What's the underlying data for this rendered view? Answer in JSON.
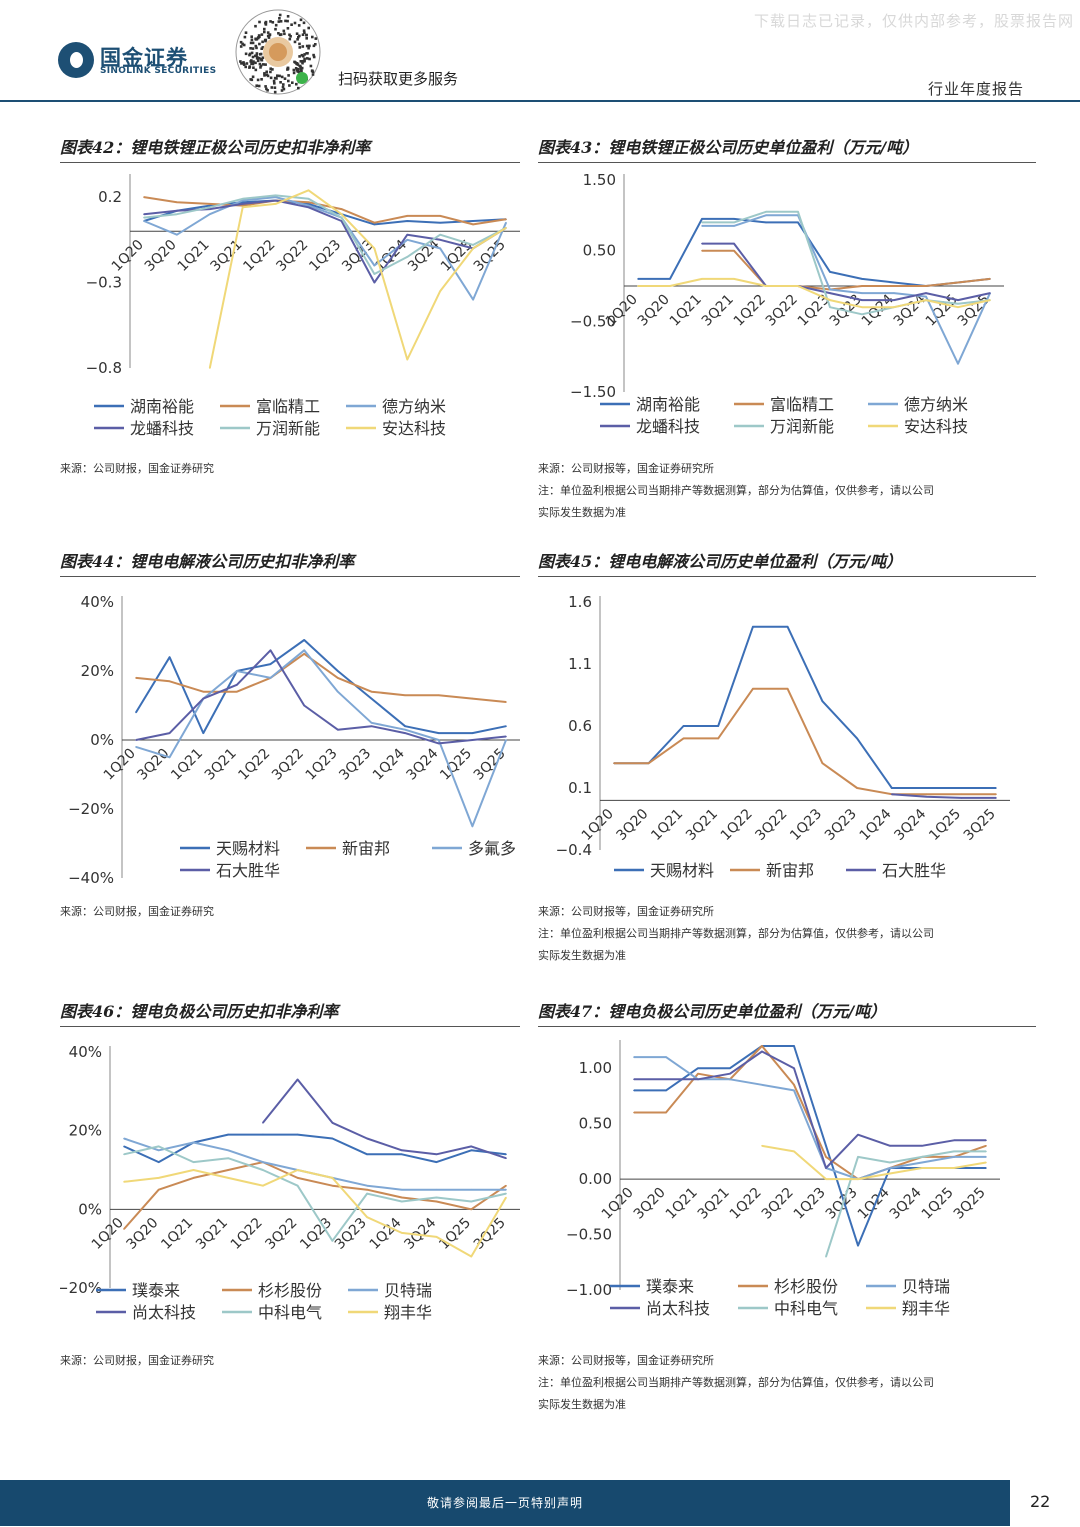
{
  "header": {
    "logo_cn": "国金证券",
    "logo_en": "SINOLINK SECURITIES",
    "scan_text": "扫码获取更多服务",
    "watermark": "下载日志已记录，仅供内部参考，股票报告网",
    "report_type": "行业年度报告"
  },
  "figures": [
    {
      "title": "图表42：锂电铁锂正极公司历史扣非净利率",
      "source": [
        "来源：公司财报，国金证券研究"
      ],
      "chart_data": {
        "type": "line",
        "categories": [
          "1Q20",
          "3Q20",
          "1Q21",
          "3Q21",
          "1Q22",
          "3Q22",
          "1Q23",
          "3Q23",
          "1Q24",
          "3Q24",
          "1Q25",
          "3Q25"
        ],
        "y_ticks": [
          "0.2",
          "−0.3",
          "−0.8"
        ],
        "ylim": [
          -0.8,
          0.3
        ],
        "series": [
          {
            "name": "湖南裕能",
            "color": "#3c6fb6",
            "values": [
              0.06,
              0.12,
              0.15,
              0.17,
              0.18,
              0.16,
              0.1,
              0.04,
              0.06,
              0.05,
              0.06,
              0.07
            ]
          },
          {
            "name": "富临精工",
            "color": "#c98a55",
            "values": [
              0.2,
              0.17,
              0.16,
              0.15,
              0.18,
              0.17,
              0.13,
              0.05,
              0.09,
              0.09,
              0.04,
              0.07
            ]
          },
          {
            "name": "德方纳米",
            "color": "#7fa7d4",
            "values": [
              0.06,
              -0.02,
              0.1,
              0.18,
              0.2,
              0.15,
              0.08,
              -0.2,
              -0.05,
              -0.1,
              -0.4,
              0.05
            ]
          },
          {
            "name": "龙蟠科技",
            "color": "#5b5ea6",
            "values": [
              0.1,
              0.12,
              0.13,
              0.16,
              0.18,
              0.14,
              0.06,
              -0.3,
              -0.02,
              -0.05,
              -0.1,
              0.02
            ]
          },
          {
            "name": "万润新能",
            "color": "#9dc8c8",
            "values": [
              0.08,
              0.1,
              0.14,
              0.19,
              0.21,
              0.19,
              0.08,
              -0.25,
              -0.15,
              -0.02,
              -0.08,
              0.02
            ]
          },
          {
            "name": "安达科技",
            "color": "#f0d878",
            "values": [
              null,
              null,
              -0.8,
              0.14,
              0.16,
              0.24,
              0.1,
              -0.1,
              -0.75,
              -0.35,
              -0.1,
              0.02
            ]
          }
        ]
      }
    },
    {
      "title": "图表43：锂电铁锂正极公司历史单位盈利（万元/吨）",
      "source": [
        "来源：公司财报等，国金证券研究所",
        "注：单位盈利根据公司当期排产等数据测算，部分为估算值，仅供参考，请以公司",
        "实际发生数据为准"
      ],
      "chart_data": {
        "type": "line",
        "categories": [
          "1Q20",
          "3Q20",
          "1Q21",
          "3Q21",
          "1Q22",
          "3Q22",
          "1Q23",
          "3Q23",
          "1Q24",
          "3Q24",
          "1Q25",
          "3Q25"
        ],
        "y_ticks": [
          "1.50",
          "0.50",
          "−0.50",
          "−1.50"
        ],
        "ylim": [
          -1.5,
          1.5
        ],
        "series": [
          {
            "name": "湖南裕能",
            "color": "#3c6fb6",
            "values": [
              0.1,
              0.1,
              0.95,
              0.95,
              0.9,
              0.9,
              0.2,
              0.1,
              0.05,
              0.0,
              0.05,
              0.1
            ]
          },
          {
            "name": "富临精工",
            "color": "#c98a55",
            "values": [
              null,
              null,
              0.5,
              0.5,
              0.0,
              0.0,
              -0.05,
              0.0,
              0.0,
              0.0,
              0.05,
              0.1
            ]
          },
          {
            "name": "德方纳米",
            "color": "#7fa7d4",
            "values": [
              null,
              null,
              0.85,
              0.85,
              1.0,
              1.0,
              -0.05,
              -0.1,
              -0.1,
              -0.15,
              -1.1,
              -0.1
            ]
          },
          {
            "name": "龙蟠科技",
            "color": "#5b5ea6",
            "values": [
              null,
              null,
              0.6,
              0.6,
              0.0,
              0.0,
              -0.1,
              -0.2,
              -0.2,
              -0.1,
              -0.2,
              -0.1
            ]
          },
          {
            "name": "万润新能",
            "color": "#9dc8c8",
            "values": [
              null,
              null,
              0.9,
              0.9,
              1.05,
              1.05,
              -0.3,
              -0.4,
              -0.3,
              -0.2,
              -0.25,
              -0.2
            ]
          },
          {
            "name": "安达科技",
            "color": "#f0d878",
            "values": [
              0.0,
              0.0,
              0.1,
              0.1,
              0.0,
              0.0,
              -0.2,
              -0.3,
              -0.3,
              -0.2,
              -0.3,
              -0.2
            ]
          }
        ]
      }
    },
    {
      "title": "图表44：锂电电解液公司历史扣非净利率",
      "source": [
        "来源：公司财报，国金证券研究"
      ],
      "chart_data": {
        "type": "line",
        "categories": [
          "1Q20",
          "3Q20",
          "1Q21",
          "3Q21",
          "1Q22",
          "3Q22",
          "1Q23",
          "3Q23",
          "1Q24",
          "3Q24",
          "1Q25",
          "3Q25"
        ],
        "y_ticks": [
          "40%",
          "20%",
          "0%",
          "−20%",
          "−40%"
        ],
        "ylim": [
          -40,
          40
        ],
        "series": [
          {
            "name": "天赐材料",
            "color": "#3c6fb6",
            "values": [
              8,
              24,
              2,
              20,
              22,
              29,
              20,
              12,
              4,
              2,
              2,
              4
            ]
          },
          {
            "name": "新宙邦",
            "color": "#c98a55",
            "values": [
              18,
              17,
              14,
              14,
              18,
              25,
              18,
              14,
              13,
              13,
              12,
              11
            ]
          },
          {
            "name": "多氟多",
            "color": "#7fa7d4",
            "values": [
              -2,
              -5,
              12,
              20,
              18,
              26,
              14,
              5,
              3,
              0,
              -25,
              0
            ]
          },
          {
            "name": "石大胜华",
            "color": "#5b5ea6",
            "values": [
              0,
              2,
              12,
              16,
              26,
              10,
              3,
              4,
              2,
              -1,
              0,
              1
            ]
          }
        ]
      }
    },
    {
      "title": "图表45：锂电电解液公司历史单位盈利（万元/吨）",
      "source": [
        "来源：公司财报等，国金证券研究所",
        "注：单位盈利根据公司当期排产等数据测算，部分为估算值，仅供参考，请以公司",
        "实际发生数据为准"
      ],
      "chart_data": {
        "type": "line",
        "categories": [
          "1Q20",
          "3Q20",
          "1Q21",
          "3Q21",
          "1Q22",
          "3Q22",
          "1Q23",
          "3Q23",
          "1Q24",
          "3Q24",
          "1Q25",
          "3Q25"
        ],
        "y_ticks": [
          "1.6",
          "1.1",
          "0.6",
          "0.1",
          "−0.4"
        ],
        "ylim": [
          -0.4,
          1.6
        ],
        "series": [
          {
            "name": "天赐材料",
            "color": "#3c6fb6",
            "values": [
              0.3,
              0.3,
              0.6,
              0.6,
              1.4,
              1.4,
              0.8,
              0.5,
              0.1,
              0.1,
              0.1,
              0.1
            ]
          },
          {
            "name": "新宙邦",
            "color": "#c98a55",
            "values": [
              0.3,
              0.3,
              0.5,
              0.5,
              0.9,
              0.9,
              0.3,
              0.1,
              0.05,
              0.05,
              0.05,
              0.05
            ]
          },
          {
            "name": "石大胜华",
            "color": "#5b5ea6",
            "values": [
              null,
              null,
              null,
              null,
              null,
              null,
              null,
              null,
              0.05,
              0.03,
              0.02,
              0.02
            ]
          }
        ]
      }
    },
    {
      "title": "图表46：锂电负极公司历史扣非净利率",
      "source": [
        "来源：公司财报，国金证券研究"
      ],
      "chart_data": {
        "type": "line",
        "categories": [
          "1Q20",
          "3Q20",
          "1Q21",
          "3Q21",
          "1Q22",
          "3Q22",
          "1Q23",
          "3Q23",
          "1Q24",
          "3Q24",
          "1Q25",
          "3Q25"
        ],
        "y_ticks": [
          "40%",
          "20%",
          "0%",
          "−20%"
        ],
        "ylim": [
          -20,
          40
        ],
        "series": [
          {
            "name": "璞泰来",
            "color": "#3c6fb6",
            "values": [
              16,
              12,
              17,
              19,
              19,
              19,
              18,
              14,
              14,
              12,
              15,
              14
            ]
          },
          {
            "name": "杉杉股份",
            "color": "#c98a55",
            "values": [
              -5,
              5,
              8,
              10,
              12,
              8,
              6,
              5,
              3,
              2,
              0,
              6
            ]
          },
          {
            "name": "贝特瑞",
            "color": "#7fa7d4",
            "values": [
              18,
              15,
              17,
              15,
              12,
              10,
              8,
              6,
              5,
              5,
              5,
              5
            ]
          },
          {
            "name": "尚太科技",
            "color": "#5b5ea6",
            "values": [
              null,
              null,
              null,
              null,
              22,
              33,
              22,
              18,
              15,
              14,
              16,
              13
            ]
          },
          {
            "name": "中科电气",
            "color": "#9dc8c8",
            "values": [
              14,
              16,
              12,
              13,
              10,
              6,
              -8,
              4,
              2,
              3,
              2,
              4
            ]
          },
          {
            "name": "翔丰华",
            "color": "#f0d878",
            "values": [
              7,
              8,
              10,
              8,
              6,
              10,
              8,
              -2,
              -6,
              -7,
              -12,
              3
            ]
          }
        ]
      }
    },
    {
      "title": "图表47：锂电负极公司历史单位盈利（万元/吨）",
      "source": [
        "来源：公司财报等，国金证券研究所",
        "注：单位盈利根据公司当期排产等数据测算，部分为估算值，仅供参考，请以公司",
        "实际发生数据为准"
      ],
      "chart_data": {
        "type": "line",
        "categories": [
          "1Q20",
          "3Q20",
          "1Q21",
          "3Q21",
          "1Q22",
          "3Q22",
          "1Q23",
          "3Q23",
          "1Q24",
          "3Q24",
          "1Q25",
          "3Q25"
        ],
        "y_ticks": [
          "1.00",
          "0.50",
          "0.00",
          "−0.50",
          "−1.00"
        ],
        "ylim": [
          -1.0,
          1.2
        ],
        "series": [
          {
            "name": "璞泰来",
            "color": "#3c6fb6",
            "values": [
              0.8,
              0.8,
              1.0,
              1.0,
              1.2,
              1.2,
              0.3,
              -0.6,
              0.1,
              0.1,
              0.1,
              0.1
            ]
          },
          {
            "name": "杉杉股份",
            "color": "#c98a55",
            "values": [
              0.6,
              0.6,
              0.95,
              0.9,
              1.2,
              0.85,
              0.2,
              0.0,
              0.1,
              0.2,
              0.2,
              0.3
            ]
          },
          {
            "name": "贝特瑞",
            "color": "#7fa7d4",
            "values": [
              1.1,
              1.1,
              0.9,
              0.9,
              0.85,
              0.8,
              0.1,
              0.0,
              0.1,
              0.15,
              0.2,
              0.2
            ]
          },
          {
            "name": "尚太科技",
            "color": "#5b5ea6",
            "values": [
              0.9,
              0.9,
              0.9,
              0.95,
              1.15,
              1.0,
              0.1,
              0.4,
              0.3,
              0.3,
              0.35,
              0.35
            ]
          },
          {
            "name": "中科电气",
            "color": "#9dc8c8",
            "values": [
              null,
              null,
              null,
              null,
              null,
              null,
              -0.7,
              0.2,
              0.15,
              0.2,
              0.25,
              0.25
            ]
          },
          {
            "name": "翔丰华",
            "color": "#f0d878",
            "values": [
              null,
              null,
              null,
              null,
              0.3,
              0.25,
              0.0,
              0.0,
              0.05,
              0.1,
              0.1,
              0.15
            ]
          }
        ]
      }
    }
  ],
  "footer": {
    "text": "敬请参阅最后一页特别声明",
    "page": "22"
  }
}
